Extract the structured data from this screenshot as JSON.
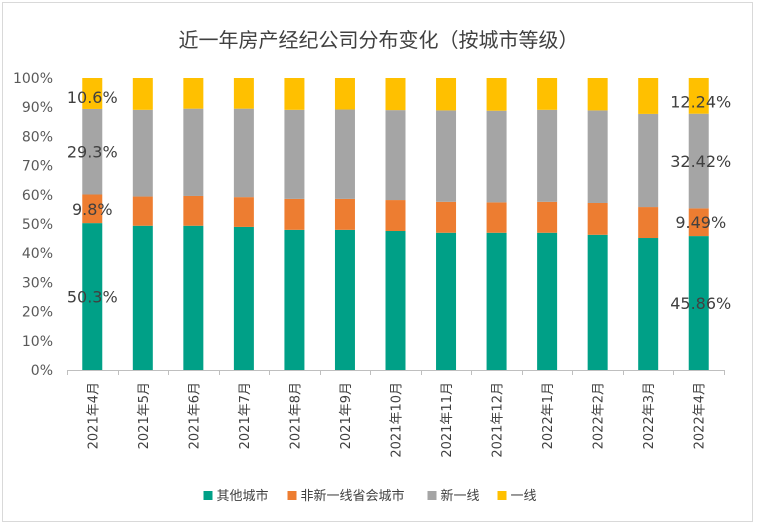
{
  "chart_data": {
    "type": "bar",
    "stacked": true,
    "percent": true,
    "title": "近一年房产经纪公司分布变化（按城市等级）",
    "categories": [
      "2021年4月",
      "2021年5月",
      "2021年6月",
      "2021年7月",
      "2021年8月",
      "2021年9月",
      "2021年10月",
      "2021年11月",
      "2021年12月",
      "2022年1月",
      "2022年2月",
      "2022年3月",
      "2022年4月"
    ],
    "series": [
      {
        "name": "其他城市",
        "color": "#00a087",
        "values": [
          50.3,
          49.4,
          49.4,
          49.0,
          48.0,
          48.0,
          47.6,
          47.0,
          47.0,
          47.0,
          46.3,
          45.2,
          45.86
        ]
      },
      {
        "name": "非新一线省会城市",
        "color": "#ed7d31",
        "values": [
          9.8,
          10.0,
          10.2,
          10.2,
          10.6,
          10.6,
          10.6,
          10.6,
          10.4,
          10.6,
          10.9,
          10.6,
          9.49
        ]
      },
      {
        "name": "新一线",
        "color": "#a5a5a5",
        "values": [
          29.3,
          29.7,
          29.9,
          30.3,
          30.5,
          30.6,
          30.8,
          31.3,
          31.4,
          31.5,
          31.7,
          31.9,
          32.42
        ]
      },
      {
        "name": "一线",
        "color": "#ffc000",
        "values": [
          10.6,
          10.9,
          10.5,
          10.5,
          10.9,
          10.8,
          11.0,
          11.1,
          11.2,
          10.9,
          11.1,
          12.3,
          12.24
        ]
      }
    ],
    "data_labels": {
      "first": [
        "50.3%",
        "9.8%",
        "29.3%",
        "10.6%"
      ],
      "last": [
        "45.86%",
        "9.49%",
        "32.42%",
        "12.24%"
      ]
    },
    "ylim": [
      0,
      100
    ],
    "yticks": [
      "0%",
      "10%",
      "20%",
      "30%",
      "40%",
      "50%",
      "60%",
      "70%",
      "80%",
      "90%",
      "100%"
    ],
    "legend_position": "bottom",
    "grid": false
  }
}
